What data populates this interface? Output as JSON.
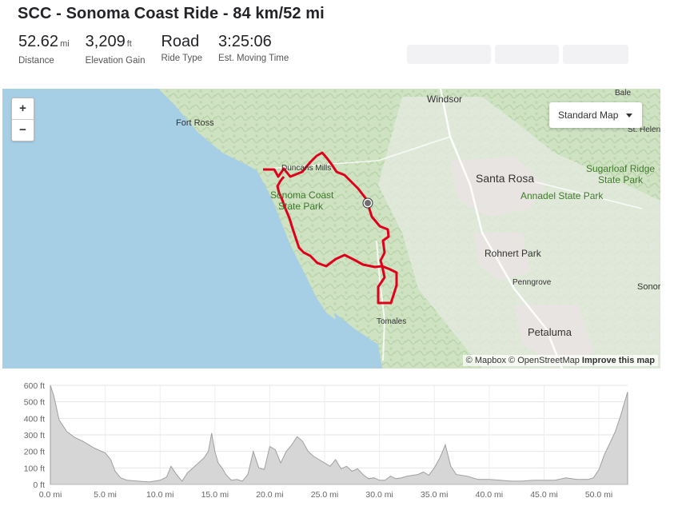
{
  "route": {
    "title": "SCC - Sonoma Coast Ride - 84 km/52 mi",
    "stats": [
      {
        "value": "52.62",
        "unit": "mi",
        "label": "Distance"
      },
      {
        "value": "3,209",
        "unit": "ft",
        "label": "Elevation Gain"
      },
      {
        "value": "Road",
        "unit": "",
        "label": "Ride Type"
      },
      {
        "value": "3:25:06",
        "unit": "",
        "label": "Est. Moving Time"
      }
    ]
  },
  "map": {
    "zoom_in": "+",
    "zoom_out": "−",
    "map_type": "Standard Map",
    "attribution": {
      "mapbox": "© Mapbox",
      "osm": "© OpenStreetMap",
      "improve": "Improve this map"
    },
    "places": [
      {
        "name": "Windsor",
        "cls": "town"
      },
      {
        "name": "Fort Ross",
        "cls": "town"
      },
      {
        "name": "Bale",
        "cls": "small"
      },
      {
        "name": "St. Helen",
        "cls": "small"
      },
      {
        "name": "Duncans Mills",
        "cls": "small"
      },
      {
        "name": "Santa Rosa",
        "cls": "city"
      },
      {
        "name": "Sugarloaf Ridge",
        "cls": "park"
      },
      {
        "name": "State Park",
        "cls": "park"
      },
      {
        "name": "Annadel State Park",
        "cls": "park"
      },
      {
        "name": "Sonoma Coast",
        "cls": "park"
      },
      {
        "name": "State Park",
        "cls": "park"
      },
      {
        "name": "Rohnert Park",
        "cls": "town"
      },
      {
        "name": "Penngrove",
        "cls": "small"
      },
      {
        "name": "Sonor",
        "cls": "small"
      },
      {
        "name": "Tomales",
        "cls": "small"
      },
      {
        "name": "Petaluma",
        "cls": "city"
      }
    ],
    "colors": {
      "water": "#a6cfe6",
      "land": "#cde2c2",
      "route": "#e0001b"
    }
  },
  "chart_data": {
    "type": "area",
    "title": "",
    "xlabel": "",
    "ylabel": "",
    "xlim": [
      0,
      52.62
    ],
    "ylim": [
      0,
      600
    ],
    "x_ticks": [
      "0.0 mi",
      "5.0 mi",
      "10.0 mi",
      "15.0 mi",
      "20.0 mi",
      "25.0 mi",
      "30.0 mi",
      "35.0 mi",
      "40.0 mi",
      "45.0 mi",
      "50.0 mi"
    ],
    "y_ticks": [
      "0 ft",
      "100 ft",
      "200 ft",
      "300 ft",
      "400 ft",
      "500 ft",
      "600 ft"
    ],
    "grid": true,
    "x": [
      0,
      0.3,
      0.8,
      1.5,
      2.2,
      3,
      4,
      5,
      5.5,
      5.9,
      6.4,
      7,
      8,
      9,
      10,
      10.6,
      11,
      11.5,
      12,
      12.5,
      13,
      13.5,
      14,
      14.4,
      14.7,
      15,
      15.3,
      15.7,
      16,
      16.5,
      17,
      17.5,
      18,
      18.5,
      19,
      19.5,
      20,
      20.5,
      21,
      21.5,
      22,
      22.5,
      23,
      23.5,
      24,
      24.5,
      25,
      25.5,
      26,
      26.5,
      27,
      27.5,
      28,
      28.5,
      29,
      29.5,
      30,
      30.5,
      31,
      31.5,
      32,
      32.5,
      33,
      33.5,
      34,
      34.5,
      35,
      35.5,
      36,
      36.5,
      37,
      38,
      39,
      40,
      41,
      42,
      43,
      44,
      45,
      46,
      47,
      48,
      49,
      49.5,
      50,
      50.5,
      51,
      51.5,
      52,
      52.62
    ],
    "series": [
      {
        "values": [
          600,
          540,
          390,
          320,
          285,
          260,
          220,
          190,
          150,
          80,
          40,
          25,
          20,
          15,
          25,
          45,
          110,
          60,
          20,
          70,
          100,
          130,
          160,
          200,
          310,
          200,
          130,
          95,
          60,
          25,
          30,
          20,
          60,
          200,
          100,
          90,
          230,
          210,
          130,
          200,
          240,
          290,
          260,
          200,
          170,
          150,
          130,
          110,
          150,
          95,
          110,
          80,
          95,
          60,
          35,
          40,
          25,
          25,
          50,
          35,
          40,
          50,
          55,
          60,
          75,
          55,
          100,
          160,
          240,
          110,
          60,
          50,
          30,
          30,
          25,
          20,
          20,
          25,
          25,
          25,
          40,
          30,
          30,
          40,
          90,
          180,
          250,
          320,
          420,
          560
        ]
      }
    ]
  }
}
